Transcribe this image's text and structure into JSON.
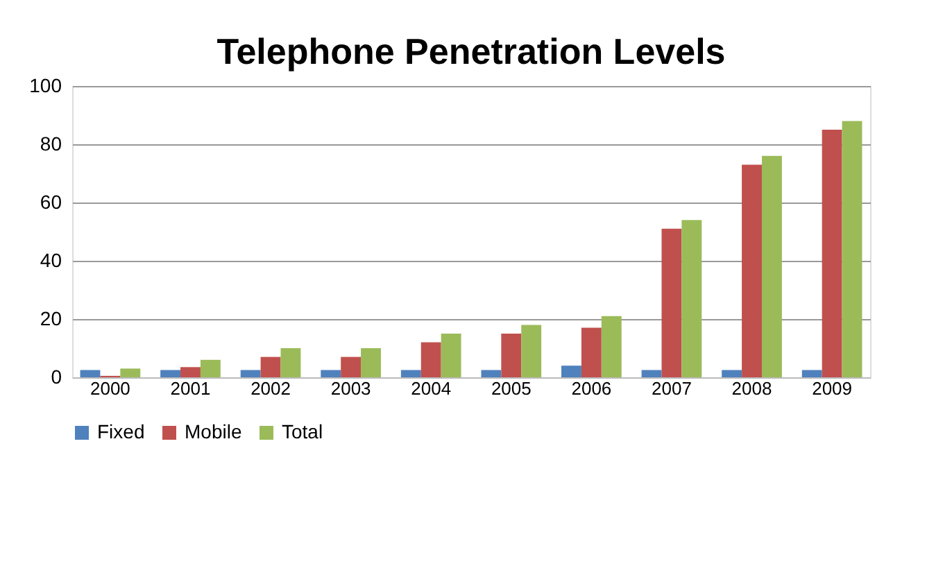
{
  "chart_data": {
    "type": "bar",
    "title": "Telephone Penetration Levels",
    "categories": [
      "2000",
      "2001",
      "2002",
      "2003",
      "2004",
      "2005",
      "2006",
      "2007",
      "2008",
      "2009"
    ],
    "series": [
      {
        "name": "Fixed",
        "color": "#4f81bd",
        "values": [
          2.5,
          2.5,
          2.5,
          2.5,
          2.5,
          2.5,
          4,
          2.5,
          2.5,
          2.5
        ]
      },
      {
        "name": "Mobile",
        "color": "#c0504d",
        "values": [
          0.5,
          3.5,
          7,
          7,
          12,
          15,
          17,
          51,
          73,
          85
        ]
      },
      {
        "name": "Total",
        "color": "#9bbb59",
        "values": [
          3,
          6,
          10,
          10,
          15,
          18,
          21,
          54,
          76,
          88
        ]
      }
    ],
    "ylim": [
      0,
      100
    ],
    "yticks": [
      0,
      20,
      40,
      60,
      80,
      100
    ],
    "grid": "y",
    "legend": "bottom"
  }
}
